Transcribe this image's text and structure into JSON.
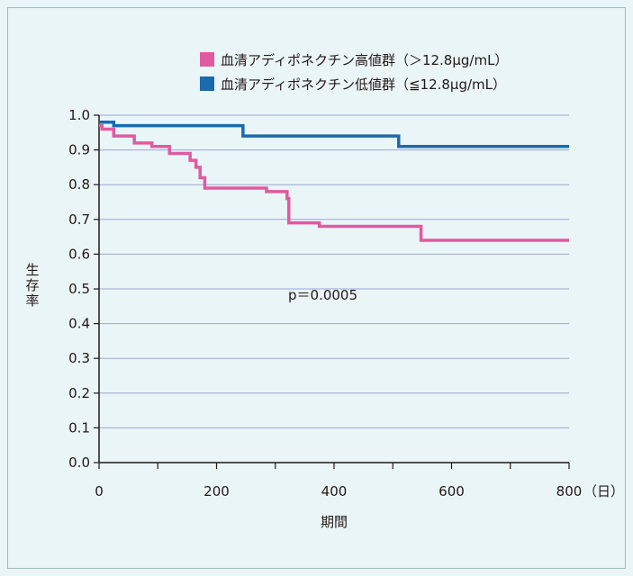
{
  "chart_data": {
    "type": "line",
    "step": true,
    "x_ticks": [
      0,
      200,
      400,
      600,
      800
    ],
    "x_unit": "（日）",
    "xlabel": "期間",
    "ylabel": "生存率",
    "xlim": [
      0,
      800
    ],
    "ylim": [
      0.0,
      1.0
    ],
    "y_ticks": [
      "0.0",
      "0.1",
      "0.2",
      "0.3",
      "0.4",
      "0.5",
      "0.6",
      "0.7",
      "0.8",
      "0.9",
      "1.0"
    ],
    "grid": "horizontal",
    "legend_position": "top-right",
    "annotation": "p＝0.0005",
    "series": [
      {
        "name": "血清アディポネクチン高値群（＞12.8μg/mL）",
        "color": "#e05aa0",
        "points": [
          [
            0,
            0.97
          ],
          [
            5,
            0.96
          ],
          [
            25,
            0.94
          ],
          [
            60,
            0.92
          ],
          [
            90,
            0.91
          ],
          [
            120,
            0.89
          ],
          [
            155,
            0.87
          ],
          [
            165,
            0.85
          ],
          [
            172,
            0.82
          ],
          [
            180,
            0.79
          ],
          [
            275,
            0.79
          ],
          [
            285,
            0.78
          ],
          [
            320,
            0.76
          ],
          [
            323,
            0.69
          ],
          [
            375,
            0.68
          ],
          [
            545,
            0.68
          ],
          [
            548,
            0.64
          ],
          [
            800,
            0.64
          ]
        ]
      },
      {
        "name": "血清アディポネクチン低値群（≦12.8μg/mL）",
        "color": "#1a6aad",
        "points": [
          [
            0,
            0.98
          ],
          [
            25,
            0.97
          ],
          [
            245,
            0.94
          ],
          [
            510,
            0.91
          ],
          [
            800,
            0.91
          ]
        ]
      }
    ]
  }
}
